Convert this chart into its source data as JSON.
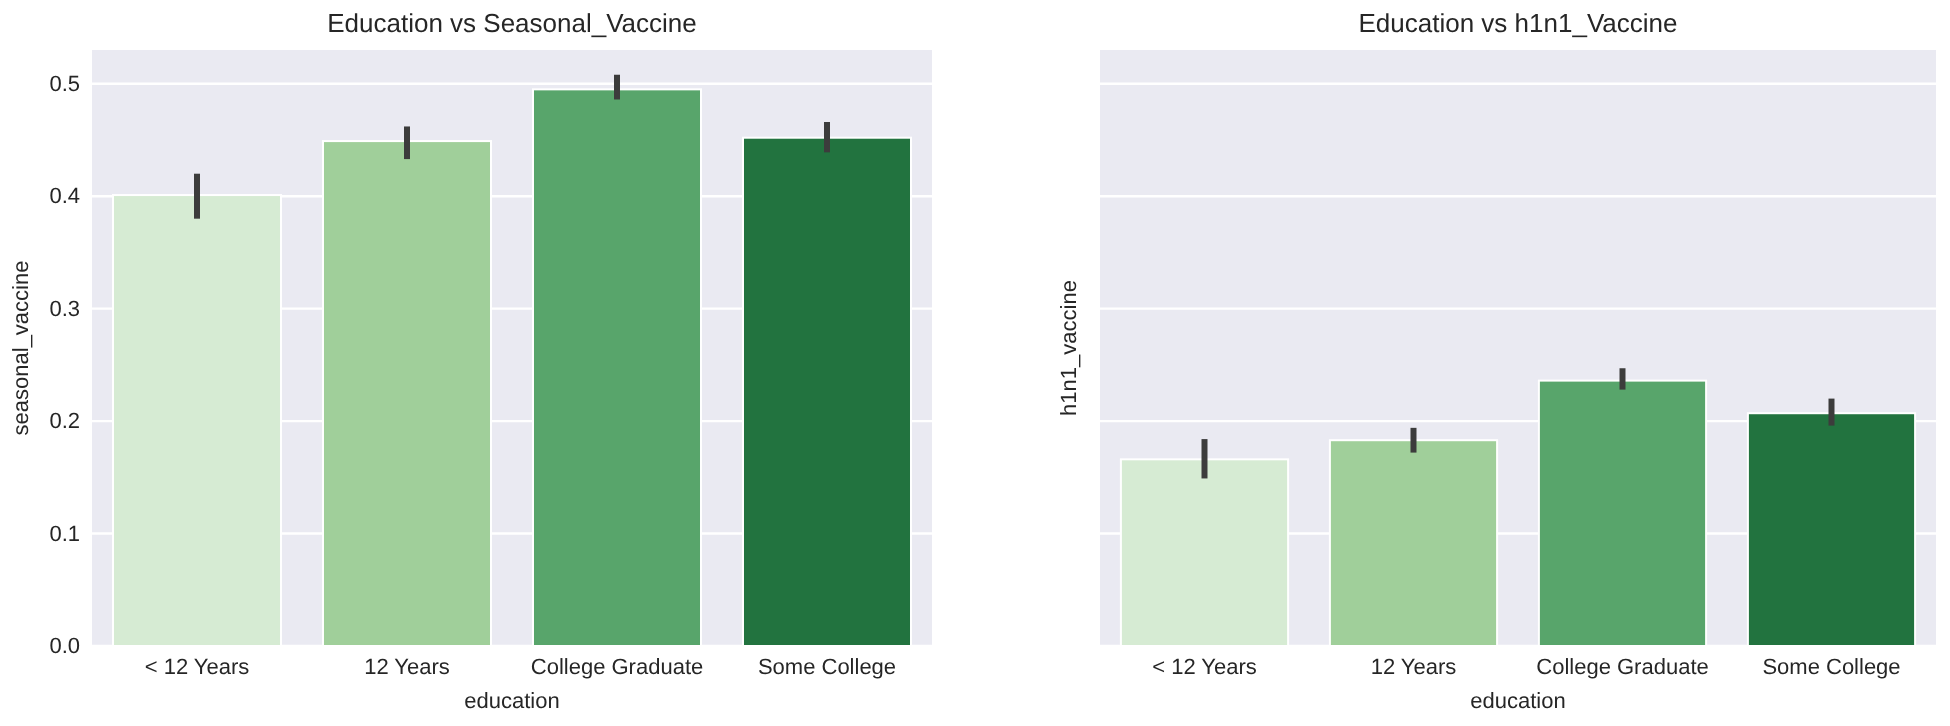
{
  "chart_data": [
    {
      "type": "bar",
      "title": "Education vs Seasonal_Vaccine",
      "xlabel": "education",
      "ylabel": "seasonal_vaccine",
      "categories": [
        "< 12 Years",
        "12 Years",
        "College Graduate",
        "Some College"
      ],
      "values": [
        0.401,
        0.449,
        0.495,
        0.452
      ],
      "errors": [
        [
          0.38,
          0.42
        ],
        [
          0.433,
          0.462
        ],
        [
          0.486,
          0.508
        ],
        [
          0.439,
          0.466
        ]
      ],
      "colors": [
        "#d6ebd3",
        "#a0cf9a",
        "#58a56b",
        "#22733f"
      ],
      "ylim": [
        0,
        0.53
      ],
      "yticks": [
        {
          "value": 0,
          "label": "0.0"
        },
        0.1,
        0.2,
        0.3,
        0.4,
        0.5
      ],
      "grid": "y"
    },
    {
      "type": "bar",
      "title": "Education vs h1n1_Vaccine",
      "xlabel": "education",
      "ylabel": "h1n1_vaccine",
      "categories": [
        "< 12 Years",
        "12 Years",
        "College Graduate",
        "Some College"
      ],
      "values": [
        0.166,
        0.183,
        0.236,
        0.207
      ],
      "errors": [
        [
          0.149,
          0.184
        ],
        [
          0.172,
          0.194
        ],
        [
          0.228,
          0.247
        ],
        [
          0.196,
          0.22
        ]
      ],
      "colors": [
        "#d6ebd3",
        "#a0cf9a",
        "#58a56b",
        "#22733f"
      ],
      "ylim": [
        0,
        0.53
      ],
      "yticks": [
        0,
        0.1,
        0.2,
        0.3,
        0.4,
        0.5
      ],
      "grid": "y",
      "tick_labels": "x"
    }
  ]
}
